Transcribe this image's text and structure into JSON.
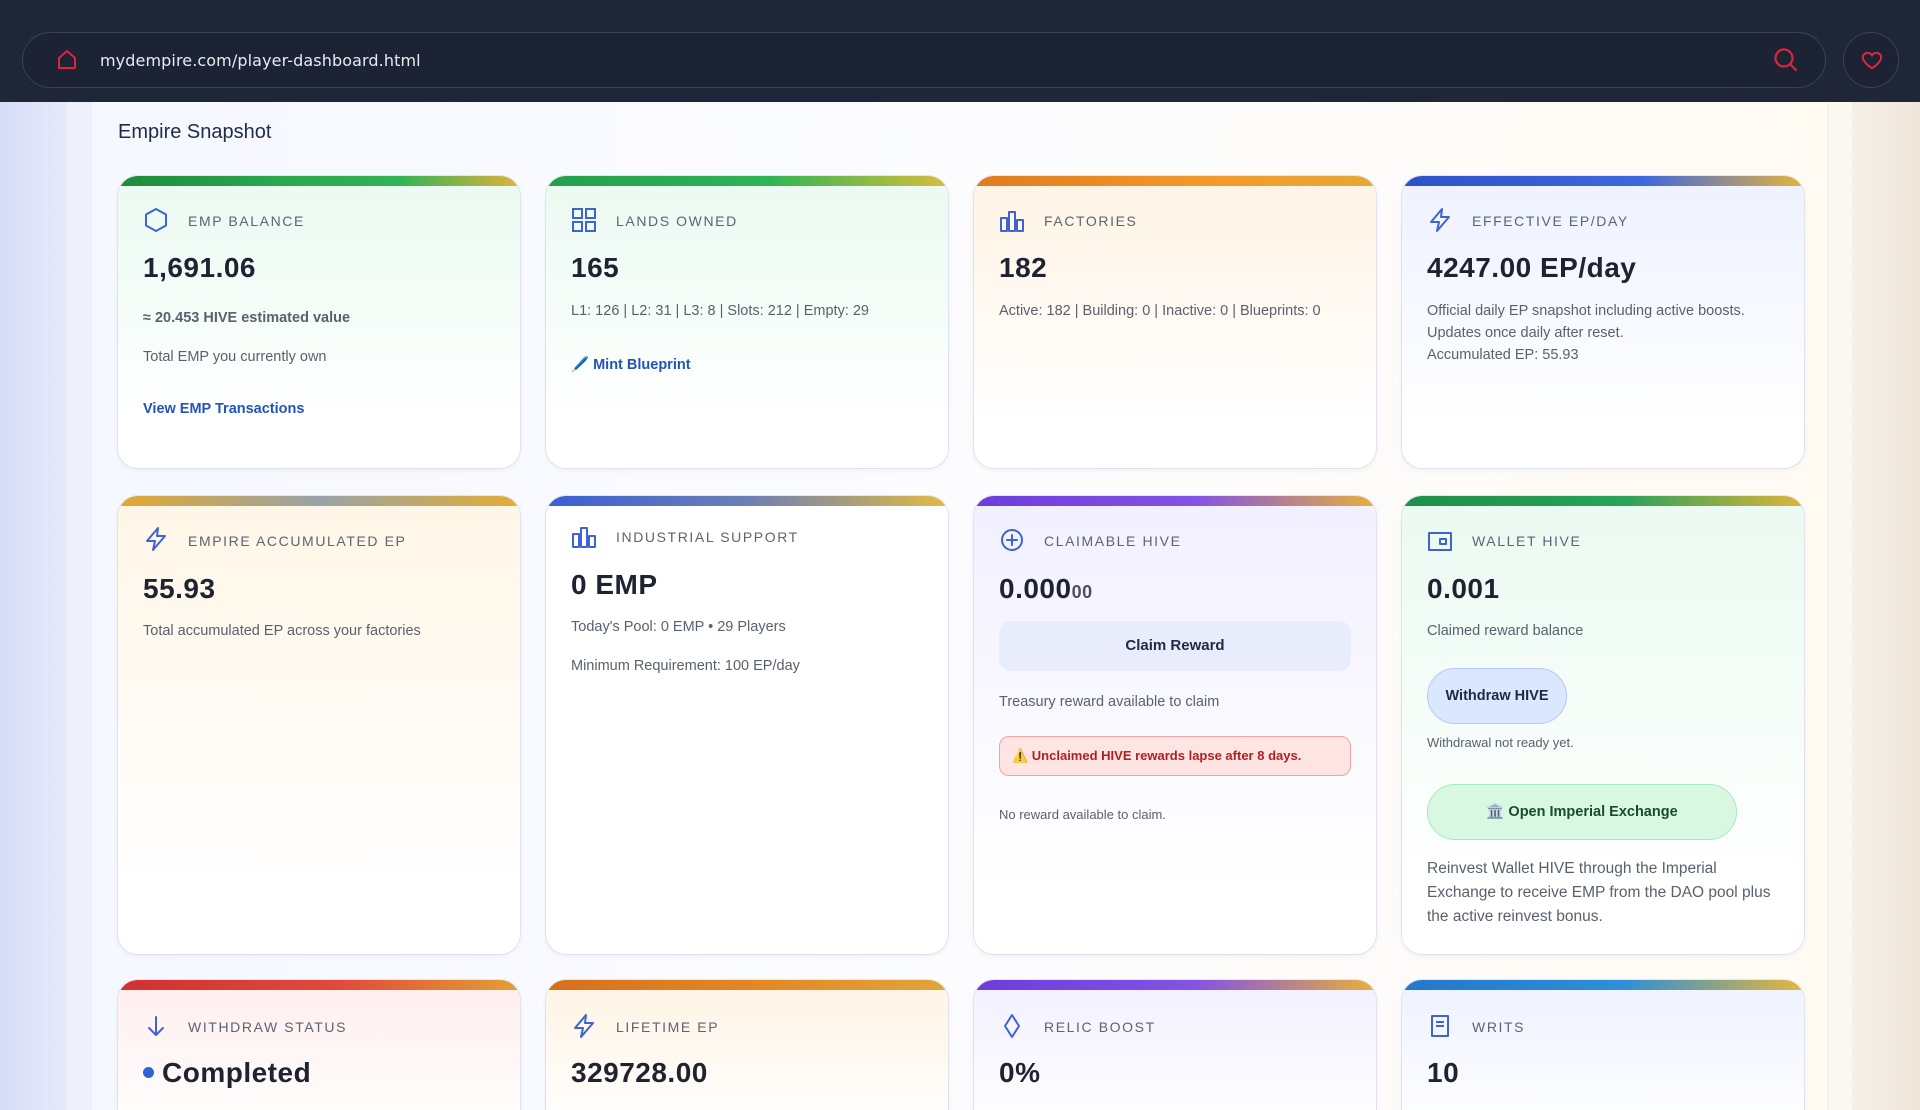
{
  "browser": {
    "url": "mydempire.com/player-dashboard.html",
    "icons": {
      "home": "home-icon",
      "search": "search-icon",
      "favorite": "heart-icon"
    },
    "accent": "#e0243c"
  },
  "section": {
    "title": "Empire Snapshot"
  },
  "cards": {
    "emp_balance": {
      "label": "EMP BALANCE",
      "value": "1,691.06",
      "hive_estimate": "≈ 20.453 HIVE estimated value",
      "description": "Total EMP you currently own",
      "link": "View EMP Transactions",
      "icon": "hexagon-icon"
    },
    "lands_owned": {
      "label": "LANDS OWNED",
      "value": "165",
      "details": "L1: 126 | L2: 31 | L3: 8 | Slots: 212 | Empty: 29",
      "link": "🖊️ Mint Blueprint",
      "icon": "grid-icon"
    },
    "factories": {
      "label": "FACTORIES",
      "value": "182",
      "details": "Active: 182 | Building: 0 | Inactive: 0 | Blueprints: 0",
      "icon": "factory-icon"
    },
    "effective_ep": {
      "label": "EFFECTIVE EP/DAY",
      "value": "4247.00 EP/day",
      "line1": "Official daily EP snapshot including active boosts.",
      "line2": "Updates once daily after reset.",
      "line3": "Accumulated EP: 55.93",
      "icon": "lightning-icon"
    },
    "accumulated_ep": {
      "label": "EMPIRE ACCUMULATED EP",
      "value": "55.93",
      "description": "Total accumulated EP across your factories",
      "icon": "lightning-icon"
    },
    "industrial_support": {
      "label": "INDUSTRIAL SUPPORT",
      "value": "0 EMP",
      "pool": "Today's Pool: 0 EMP • 29 Players",
      "requirement": "Minimum Requirement: 100 EP/day",
      "icon": "factory-icon"
    },
    "claimable_hive": {
      "label": "CLAIMABLE HIVE",
      "value_main": "0.000",
      "value_small": "00",
      "button": "Claim Reward",
      "description": "Treasury reward available to claim",
      "warning": "⚠️ Unclaimed HIVE rewards lapse after 8 days.",
      "status": "No reward available to claim.",
      "icon": "plus-circle-icon"
    },
    "wallet_hive": {
      "label": "WALLET HIVE",
      "value": "0.001",
      "description": "Claimed reward balance",
      "withdraw_button": "Withdraw HIVE",
      "withdraw_note": "Withdrawal not ready yet.",
      "exchange_button": "🏛️ Open Imperial Exchange",
      "reinvest_1": "Reinvest Wallet HIVE through the Imperial",
      "reinvest_2": "Exchange to receive EMP from the DAO pool plus",
      "reinvest_3": "the active reinvest bonus.",
      "icon": "wallet-icon"
    },
    "withdraw_status": {
      "label": "WITHDRAW STATUS",
      "value": "Completed",
      "icon": "arrow-down-icon"
    },
    "lifetime_ep": {
      "label": "LIFETIME EP",
      "value": "329728.00",
      "icon": "lightning-icon"
    },
    "relic_boost": {
      "label": "RELIC BOOST",
      "value": "0%",
      "icon": "diamond-icon"
    },
    "writs": {
      "label": "WRITS",
      "value": "10",
      "icon": "document-icon"
    }
  }
}
